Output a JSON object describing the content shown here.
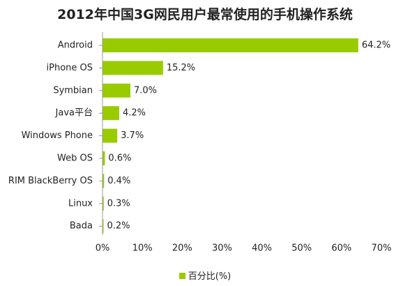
{
  "chart_data": {
    "type": "bar",
    "orientation": "horizontal",
    "title": "2012年中国3G网民用户最常使用的手机操作系统",
    "categories": [
      "Android",
      "iPhone OS",
      "Symbian",
      "Java平台",
      "Windows Phone",
      "Web OS",
      "RIM BlackBerry OS",
      "Linux",
      "Bada"
    ],
    "series": [
      {
        "name": "百分比(%)",
        "values": [
          64.2,
          15.2,
          7.0,
          4.2,
          3.7,
          0.6,
          0.4,
          0.3,
          0.2
        ],
        "labels": [
          "64.2%",
          "15.2%",
          "7.0%",
          "4.2%",
          "3.7%",
          "0.6%",
          "0.4%",
          "0.3%",
          "0.2%"
        ]
      }
    ],
    "xlim": [
      0,
      70
    ],
    "xticks": [
      0,
      10,
      20,
      30,
      40,
      50,
      60,
      70
    ],
    "xtick_labels": [
      "0%",
      "10%",
      "20%",
      "30%",
      "40%",
      "50%",
      "60%",
      "70%"
    ],
    "grid": false,
    "legend_position": "bottom",
    "bar_color": "#99cc00"
  }
}
